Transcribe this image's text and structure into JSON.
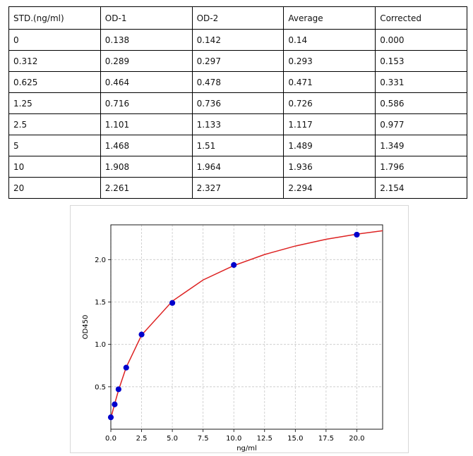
{
  "table": {
    "headers": [
      "STD.(ng/ml)",
      "OD-1",
      "OD-2",
      "Average",
      "Corrected"
    ],
    "rows": [
      [
        "0",
        "0.138",
        "0.142",
        "0.14",
        "0.000"
      ],
      [
        "0.312",
        "0.289",
        "0.297",
        "0.293",
        "0.153"
      ],
      [
        "0.625",
        "0.464",
        "0.478",
        "0.471",
        "0.331"
      ],
      [
        "1.25",
        "0.716",
        "0.736",
        "0.726",
        "0.586"
      ],
      [
        "2.5",
        "1.101",
        "1.133",
        "1.117",
        "0.977"
      ],
      [
        "5",
        "1.468",
        "1.51",
        "1.489",
        "1.349"
      ],
      [
        "10",
        "1.908",
        "1.964",
        "1.936",
        "1.796"
      ],
      [
        "20",
        "2.261",
        "2.327",
        "2.294",
        "2.154"
      ]
    ]
  },
  "chart_data": {
    "type": "scatter",
    "title": "",
    "xlabel": "ng/ml",
    "ylabel": "OD450",
    "xlim": [
      0,
      22.1
    ],
    "ylim": [
      0.0,
      2.41
    ],
    "xticks": [
      "0.0",
      "2.5",
      "5.0",
      "7.5",
      "10.0",
      "12.5",
      "15.0",
      "17.5",
      "20.0"
    ],
    "yticks": [
      "0.5",
      "1.0",
      "1.5",
      "2.0"
    ],
    "grid": true,
    "series": [
      {
        "kind": "points",
        "color": "#0000cc",
        "x": [
          0,
          0.312,
          0.625,
          1.25,
          2.5,
          5,
          10,
          20
        ],
        "y": [
          0.14,
          0.293,
          0.471,
          0.726,
          1.117,
          1.489,
          1.936,
          2.294
        ]
      },
      {
        "kind": "fit-curve",
        "color": "#dd2222",
        "x": [
          0,
          0.312,
          0.625,
          1.25,
          2.5,
          5,
          7.5,
          10,
          12.5,
          15,
          17.5,
          20,
          22.1
        ],
        "y": [
          0.13,
          0.3,
          0.46,
          0.73,
          1.11,
          1.51,
          1.76,
          1.93,
          2.06,
          2.16,
          2.24,
          2.3,
          2.34
        ]
      }
    ]
  }
}
